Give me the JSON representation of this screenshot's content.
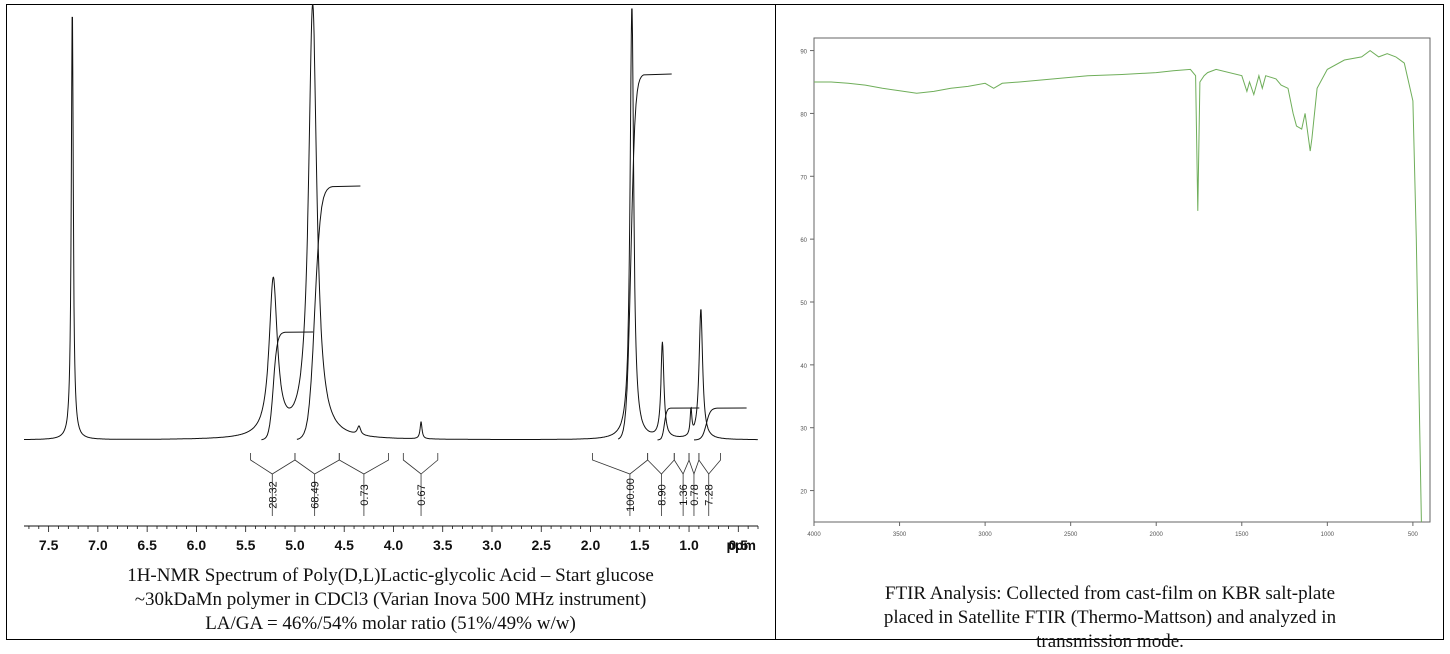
{
  "chart_data": [
    {
      "type": "line",
      "xlabel": "ppm",
      "xlim": [
        7.75,
        0.3
      ],
      "x_reversed": true,
      "ticks": [
        "7.5",
        "7.0",
        "6.5",
        "6.0",
        "5.5",
        "5.0",
        "4.5",
        "4.0",
        "3.5",
        "3.0",
        "2.5",
        "2.0",
        "1.5",
        "1.0",
        "0.5"
      ],
      "peaks": [
        {
          "ppm": 7.26,
          "height": 1.0
        },
        {
          "ppm": 5.22,
          "height": 0.36
        },
        {
          "ppm": 4.82,
          "height": 1.0
        },
        {
          "ppm": 4.35,
          "height": 0.02
        },
        {
          "ppm": 3.72,
          "height": 0.04
        },
        {
          "ppm": 1.58,
          "height": 1.0
        },
        {
          "ppm": 1.27,
          "height": 0.22
        },
        {
          "ppm": 0.98,
          "height": 0.06
        },
        {
          "ppm": 0.88,
          "height": 0.3
        }
      ],
      "integrals": [
        "28.32",
        "68.49",
        "0.73",
        "0.67",
        "100.00",
        "8.90",
        "1.36",
        "0.78",
        "7.28"
      ],
      "caption": [
        "1H-NMR Spectrum of Poly(D,L)Lactic-glycolic Acid – Start glucose",
        "~30kDaMn polymer in CDCl3 (Varian Inova 500 MHz instrument)",
        "LA/GA = 46%/54% molar ratio (51%/49% w/w)"
      ]
    },
    {
      "type": "line",
      "xlim": [
        4000,
        400
      ],
      "ylim": [
        15,
        92
      ],
      "yticks": [
        "90",
        "80",
        "70",
        "60",
        "50",
        "40",
        "30",
        "20"
      ],
      "xticks": [
        "4000",
        "3500",
        "3000",
        "2500",
        "2000",
        "1500",
        "1000",
        "500"
      ],
      "line_color": "#6fae5a",
      "x": [
        4000,
        3900,
        3800,
        3700,
        3600,
        3500,
        3400,
        3300,
        3200,
        3100,
        3000,
        2950,
        2900,
        2800,
        2600,
        2400,
        2200,
        2000,
        1900,
        1800,
        1770,
        1757,
        1745,
        1720,
        1700,
        1650,
        1500,
        1470,
        1455,
        1430,
        1400,
        1380,
        1360,
        1300,
        1270,
        1230,
        1200,
        1180,
        1150,
        1130,
        1100,
        1090,
        1060,
        1000,
        900,
        800,
        750,
        700,
        650,
        600,
        550,
        500,
        480,
        460,
        450
      ],
      "y": [
        85,
        85,
        84.8,
        84.5,
        84,
        83.6,
        83.2,
        83.5,
        84,
        84.3,
        84.8,
        84,
        84.8,
        85,
        85.5,
        86,
        86.2,
        86.5,
        86.8,
        87,
        86,
        64.5,
        85,
        86,
        86.5,
        87,
        86,
        83.5,
        85,
        83,
        86,
        84,
        86,
        85.5,
        84.5,
        84,
        80,
        78,
        77.5,
        80,
        74,
        76,
        84,
        87,
        88.5,
        89,
        90,
        89,
        89.5,
        89,
        88,
        82,
        60,
        30,
        15
      ],
      "caption": [
        "FTIR Analysis: Collected from cast-film on KBR salt-plate",
        "placed in Satellite FTIR (Thermo-Mattson) and analyzed in",
        "transmission mode."
      ]
    }
  ]
}
